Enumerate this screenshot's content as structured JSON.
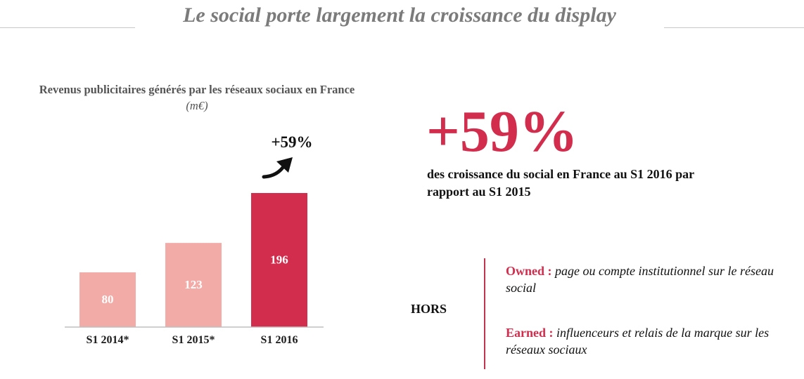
{
  "header": {
    "title": "Le social porte largement la croissance du display"
  },
  "colors": {
    "accent": "#d22d4d",
    "bar_light": "#f2aba6",
    "title_gray": "#7b7b7b"
  },
  "chart_data": {
    "type": "bar",
    "title": "Revenus publicitaires générés par les réseaux sociaux en France",
    "unit": "(m€)",
    "categories": [
      "S1 2014*",
      "S1 2015*",
      "S1 2016"
    ],
    "values": [
      80,
      123,
      196
    ],
    "value_labels": [
      "80",
      "123",
      "196"
    ],
    "highlight_index": 2,
    "annotation": "+59%",
    "xlabel": "",
    "ylabel": "",
    "grid": false
  },
  "highlight": {
    "value": "+59%",
    "text": "des croissance du social en France au S1 2016 par rapport au S1 2015"
  },
  "hors": {
    "label": "HORS",
    "owned": {
      "term": "Owned :",
      "desc": "page ou compte institutionnel sur le réseau social"
    },
    "earned": {
      "term": "Earned :",
      "desc": "influenceurs et relais de la marque sur les réseaux sociaux"
    }
  }
}
